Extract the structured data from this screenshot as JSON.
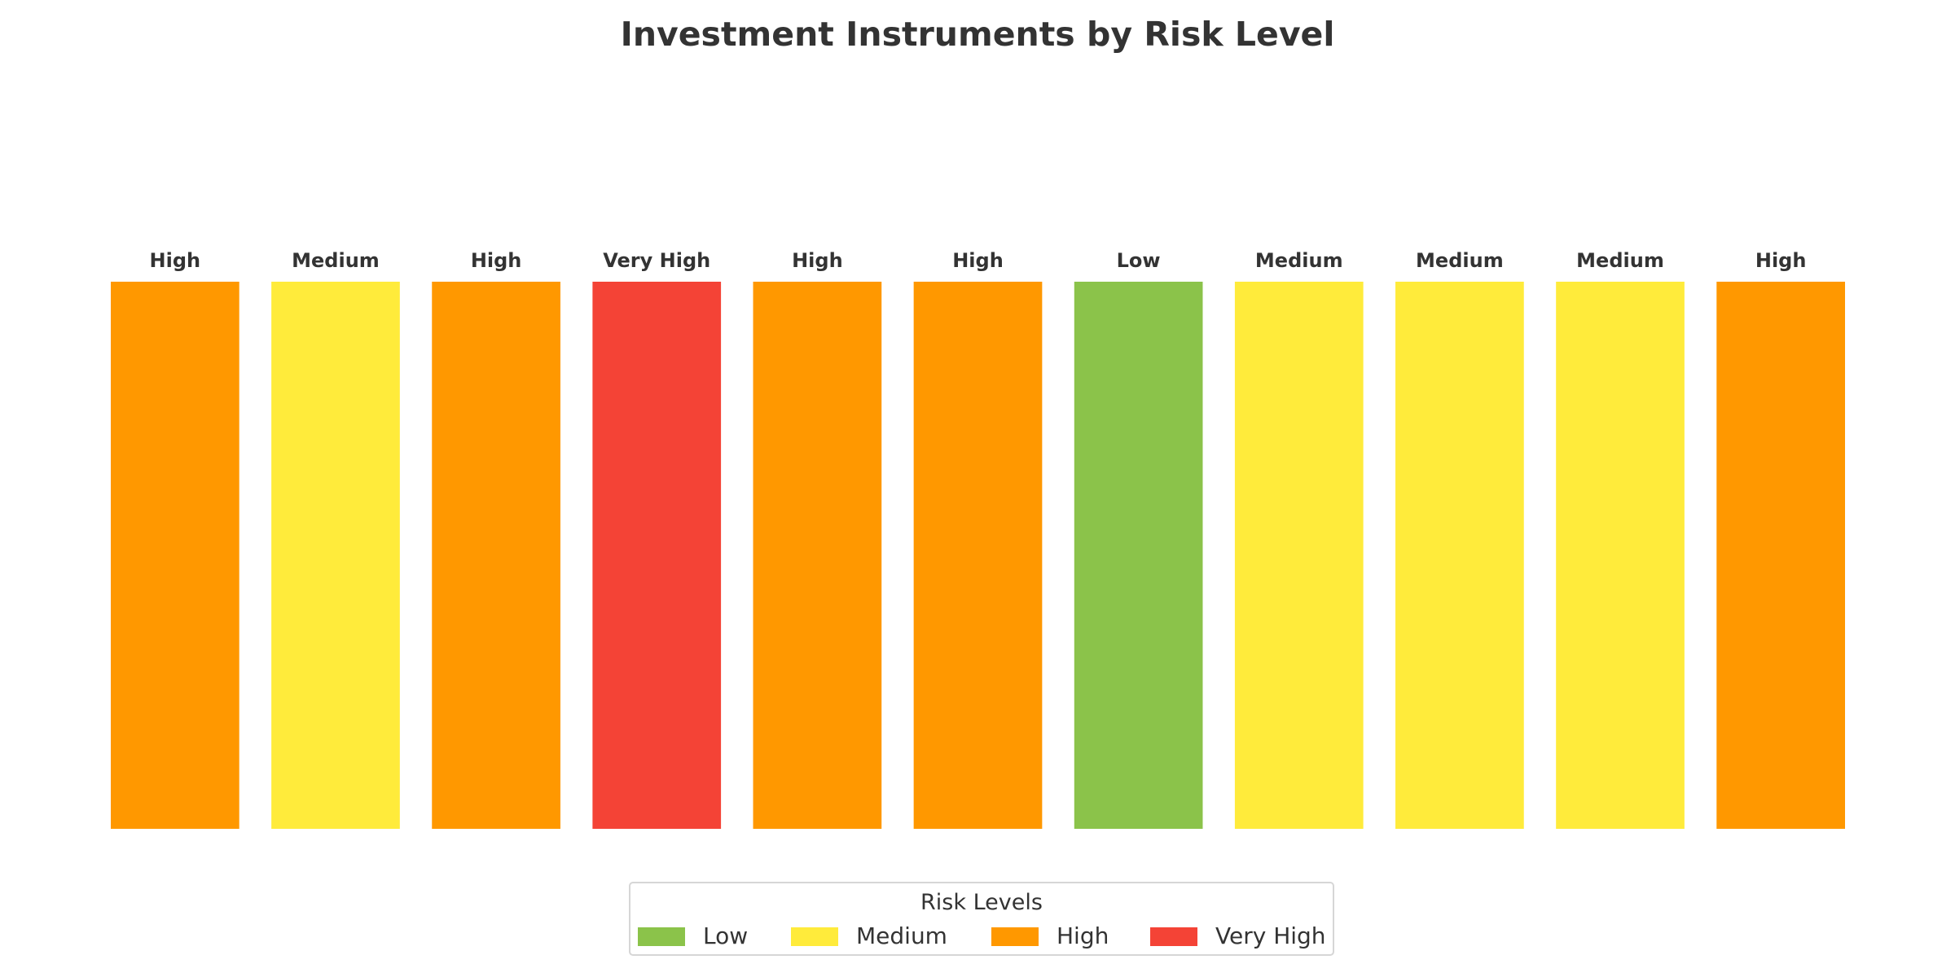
{
  "chart_data": {
    "type": "bar",
    "title": "Investment Instruments by Risk Level",
    "categories": [
      "",
      "",
      "",
      "",
      "",
      "",
      "",
      "",
      "",
      "",
      ""
    ],
    "values": [
      1,
      1,
      1,
      1,
      1,
      1,
      1,
      1,
      1,
      1,
      1
    ],
    "risk_levels": [
      "High",
      "Medium",
      "High",
      "Very High",
      "High",
      "High",
      "Low",
      "Medium",
      "Medium",
      "Medium",
      "High"
    ],
    "ylim": [
      0,
      1
    ],
    "grid": false,
    "colors": {
      "Low": "#8bc34a",
      "Medium": "#ffeb3b",
      "High": "#ff9800",
      "Very High": "#f44336"
    },
    "legend": {
      "title": "Risk Levels",
      "placement": "bottom-center",
      "entries": [
        "Low",
        "Medium",
        "High",
        "Very High"
      ]
    }
  }
}
